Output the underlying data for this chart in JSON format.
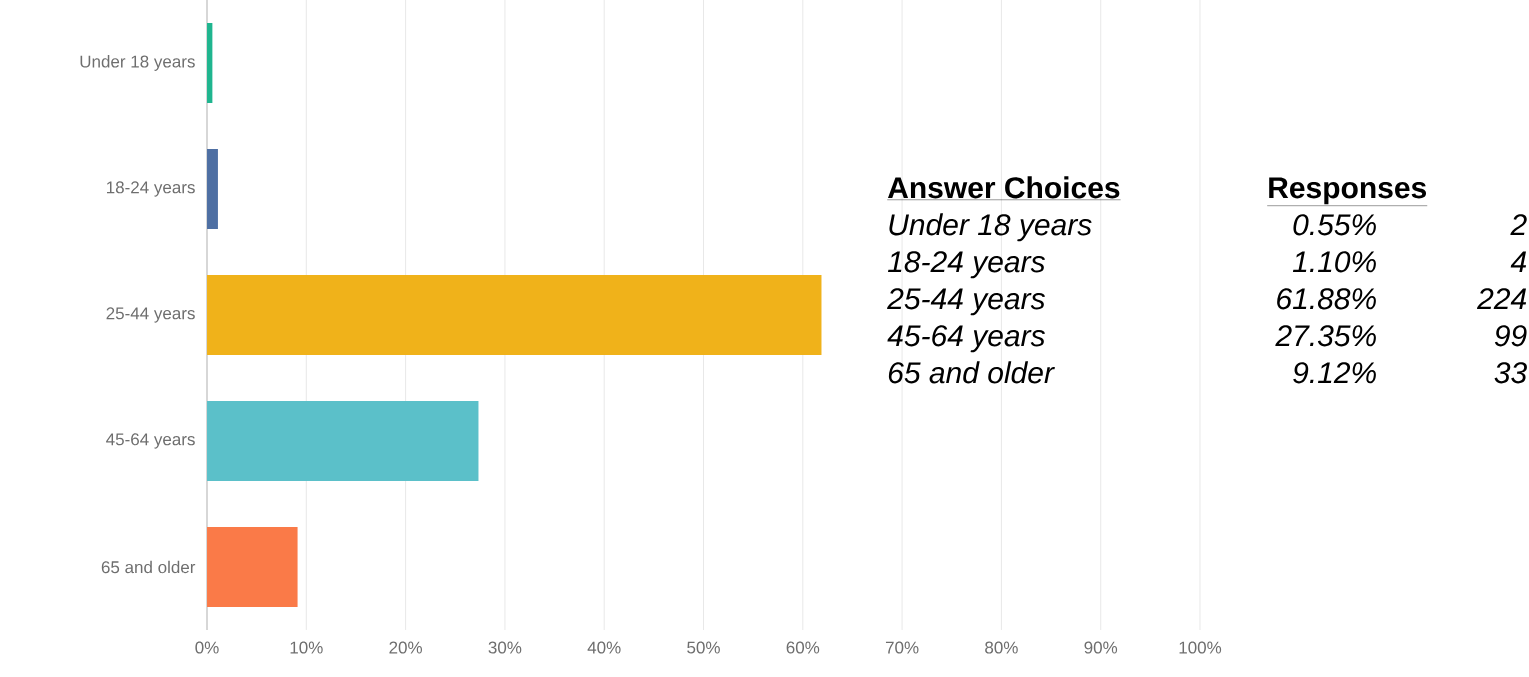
{
  "chart_data": [
    {
      "type": "bar",
      "orientation": "horizontal",
      "categories": [
        "Under 18 years",
        "18-24 years",
        "25-44 years",
        "45-64 years",
        "65 and older"
      ],
      "values": [
        0.55,
        1.1,
        61.88,
        27.35,
        9.12
      ],
      "value_labels": [
        "0.55%",
        "1.10%",
        "61.88%",
        "27.35%",
        "9.12%"
      ],
      "colors": [
        "#1fb58f",
        "#4e6fa3",
        "#f0b21a",
        "#5bc0c9",
        "#fa7a48"
      ],
      "xlim": [
        0,
        100
      ],
      "xticks": [
        {
          "value": 0,
          "label": "0%"
        },
        {
          "value": 10,
          "label": "10%"
        },
        {
          "value": 20,
          "label": "20%"
        },
        {
          "value": 30,
          "label": "30%"
        },
        {
          "value": 40,
          "label": "40%"
        },
        {
          "value": 50,
          "label": "50%"
        },
        {
          "value": 60,
          "label": "60%"
        },
        {
          "value": 70,
          "label": "70%"
        },
        {
          "value": 80,
          "label": "80%"
        },
        {
          "value": 90,
          "label": "90%"
        },
        {
          "value": 100,
          "label": "100%"
        }
      ],
      "grid": "x"
    },
    {
      "type": "other",
      "categories": [
        "Under 18 years",
        "18-24 years",
        "25-44 years",
        "45-64 years",
        "65 and older"
      ],
      "series": [
        {
          "values": [
            2,
            4,
            224,
            99,
            33
          ]
        }
      ],
      "data_labels": true,
      "annotations": [
        "Answer Choices",
        "Responses"
      ]
    }
  ]
}
